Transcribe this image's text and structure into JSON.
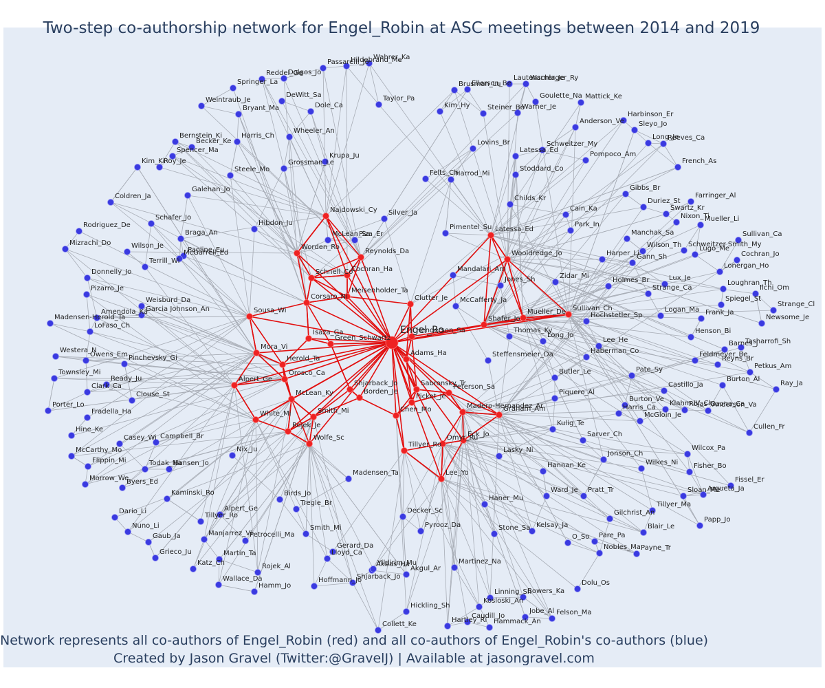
{
  "title": "Two-step co-authorship network for Engel_Robin at ASC meetings between 2014 and 2019",
  "caption_line1": "Network represents all co-authors of Engel_Robin (red) and all co-authors of Engel_Robin's co-authors (blue)",
  "caption_line2": "Created by Jason Gravel (Twitter:@GravelJ) | Available at jasongravel.com",
  "colors": {
    "coauthor": "#ee2222",
    "second_step": "#3a3ae0",
    "edge_gray": "#a8adb6",
    "edge_red": "#e21010",
    "background": "#e5ecf6"
  },
  "center_node": "Engel_Ro",
  "red_nodes": [
    "Engel_Ro",
    "Najdowski_Cy",
    "Worden_Ro",
    "Schnell_Co",
    "Cochran_Ha",
    "Reynolds_Da",
    "Meisenholder_Ta",
    "Corsaro_Ni",
    "Isaza_Ga",
    "Green_Schwartz",
    "Sousa_Wi",
    "Mora_Vi",
    "Herold_Ta",
    "Orosco_Ca",
    "Alpert_Ge",
    "McLean_Ky",
    "White_Mi",
    "Rojek_Je",
    "Wolfe_Sc",
    "Smith_Mi",
    "Shjarback_Jo",
    "Adams_Ha",
    "Henderson_Sa",
    "Clutter_Je",
    "Sabronsky_Tr",
    "Peterson_Sa",
    "Borden_Je",
    "Picket_Je",
    "Madero-Hernandez_Ar",
    "Chen_Mo",
    "Graham_Am",
    "Tillyer_Ro",
    "Dmyr_Ru",
    "Eck_Jo",
    "Lee_Yo",
    "Shafer_Jo",
    "Mueller_De",
    "Sullivan_Ch",
    "Latessa_Ed",
    "Wooldredge_Jo"
  ],
  "blue_nodes": [
    "Wahrer_Ka",
    "Hildebrand_Me",
    "Dolgos_Jo",
    "Passarelli_Jo",
    "Reddel_Ge",
    "Springer_La",
    "DeWitt_Sa",
    "Dole_Ca",
    "Bryant_Ma",
    "Taylor_Pa",
    "Weintraub_Je",
    "Wheeler_An",
    "Harris_Ch",
    "Bernstein_Ki",
    "Becker_Ke",
    "Spencer_Ma",
    "Grossman_Le",
    "Krupa_Ju",
    "Roy_Je",
    "Kim_Ki",
    "Steele_Mo",
    "Galehan_Jo",
    "Coldren_Ja",
    "Schafer_Jo",
    "Hibdon_Ju",
    "Silver_Ja",
    "Rodriguez_De",
    "Braga_An",
    "McLean_Sa",
    "Piza_Er",
    "Mizrachi_Do",
    "Wilson_Je",
    "Paoline_Eu",
    "McGarrell_Ed",
    "Terrill_Wi",
    "Donnelly_Jo",
    "Pizarro_Je",
    "Weisburd_Da",
    "Amendola_Ka",
    "Madensen-Herold_Ta",
    "Garcia Johnson_An",
    "LoFaso_Ch",
    "Westera_N",
    "Owens_Em",
    "Pinchevsky_Gi",
    "Townsley_Mi",
    "Ready_Ju",
    "Clark_Ca",
    "Clouse_St",
    "Porter_Lo",
    "Fradella_Ha",
    "Hine_Ke",
    "Casey_Wi",
    "Campbell_Br",
    "McCarthy_Mo",
    "Flippin_Mi",
    "Nix_Ju",
    "Todak_Na",
    "Hansen_Jo",
    "Morrow_We",
    "Byers_Ed",
    "Kaminski_Ro",
    "Dario_Li",
    "Nuno_Li",
    "Tillyer_Ro",
    "Alpert_Ge",
    "Gaub_Ja",
    "Manjarrez_Vi",
    "Petrocelli_Ma",
    "Grieco_Ju",
    "Katz_Ch",
    "Martin_Ta",
    "Wallace_Da",
    "Hamm_Jo",
    "Hoffmann_Jo",
    "Rojek_Al",
    "Lloyd_Ca",
    "Gerard_Da",
    "Shjarback_Jo",
    "Akbas_Ha",
    "Yildirim_Mu",
    "Birds_Jo",
    "Tregle_Br",
    "Smith_Mi",
    "Madensen_Ta",
    "Decker_Sc",
    "Pyrooz_Da",
    "Akgul_Ar",
    "Martinez_Na",
    "Brusman_Lu",
    "Warner_Je",
    "Lautenschlager_Ry",
    "Kim_Hy",
    "Ellerson_Be",
    "Goulette_Na",
    "Mattick_Ke",
    "Steiner_Be",
    "Warner_Je",
    "Harbinson_Er",
    "Anderson_Ve",
    "Sleyo_Jo",
    "Lovins_Br",
    "Schweitzer_My",
    "Long_Je",
    "Reeves_Ca",
    "Felts_Ch",
    "Latessa_Ed",
    "Pompoco_Am",
    "Harrod_Mi",
    "Stoddard_Co",
    "French_As",
    "Childs_Kr",
    "Gibbs_Br",
    "Duriez_St",
    "Farringer_Al",
    "Swartz_Kr",
    "Cain_Ka",
    "Nixon_Ti",
    "Mueller_Li",
    "Park_In",
    "Manchak_Sa",
    "Sullivan_Ca",
    "Pimentel_Su",
    "Wilson_Th",
    "Schweitzer Smith_My",
    "Cochran_Jo",
    "Harper_Li",
    "Gann_Sh",
    "Lugo_Me",
    "Lonergan_Ho",
    "Mandalari_Am",
    "Zidar_Mi",
    "Lux_Je",
    "Loughran_Th",
    "Holmes_Br",
    "Strange_Ca",
    "Ilchi_Om",
    "Jones_Sh",
    "Spiegel_St",
    "Strange_Cl",
    "McCafferty_Ja",
    "Frank_Ja",
    "Logan_Ma",
    "Newsome_Je",
    "Hochstetler_Sp",
    "Henson_Bi",
    "Tasharrofi_Sh",
    "Thomas_Ky",
    "Barnes_J",
    "Long_Jo",
    "Lee_He",
    "Feldmeyer_Be",
    "Steffensmeier_Da",
    "Haberman_Co",
    "Reyns_Br",
    "Petkus_Am",
    "Pate_Sy",
    "Butler_Le",
    "Burton_Al",
    "Ray_Ja",
    "Castillo_Ja",
    "Piquero_Al",
    "Burton_Ve",
    "Klahm IV_Ch",
    "Rojas-Gaona_Ca",
    "Anderson_Va",
    "Harris_Ca",
    "McGloin_Je",
    "Kulig_Te",
    "Cullen_Fr",
    "Sarver_Ch",
    "Wilcox_Pa",
    "Hannan_Ke",
    "Jonson_Ch",
    "Fisher_Bo",
    "Lasky_Ni",
    "Fissel_Er",
    "Wilkes_Ni",
    "Ward_Je",
    "Pratt_Tr",
    "Argueta_Ja",
    "Sloan_Me",
    "Haner_Mu",
    "Gilchrist_An",
    "Tillyer_Ma",
    "Blair_Le",
    "Papp_Jo",
    "Stone_Sa",
    "Kelsay_Ja",
    "O_So",
    "Pare_Pa",
    "Nobles_Ma",
    "Payne_Tr",
    "Dolu_Os",
    "Linning_Sh",
    "Bowers_Ka",
    "Hickling_Sh",
    "Kosloski_An",
    "Jobe_Al",
    "Felson_Ma",
    "Caudill_Jo",
    "Collett_Ke",
    "Hartley_Ri",
    "Hammack_An",
    "Weir_He"
  ]
}
